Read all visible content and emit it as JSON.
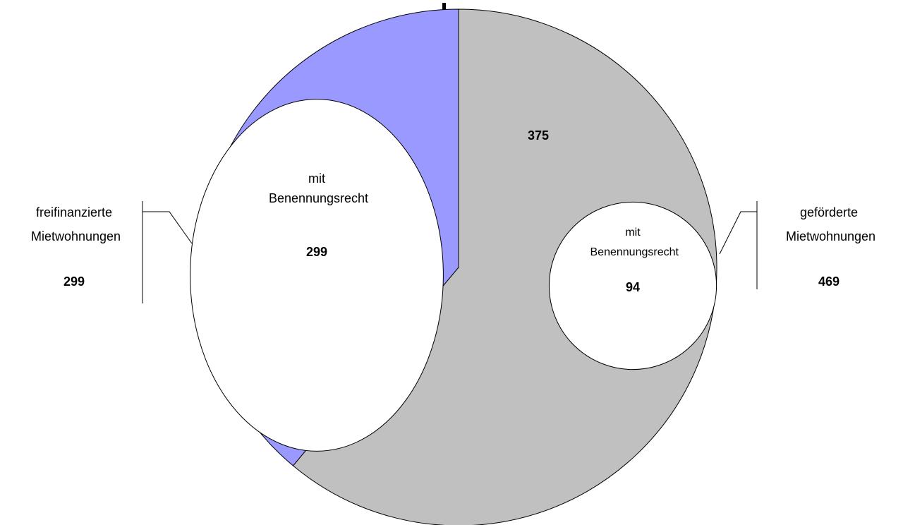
{
  "chart_data": {
    "type": "pie",
    "categories": [
      "freifinanzierte Mietwohnungen",
      "geförderte Mietwohnungen"
    ],
    "values": [
      299,
      469
    ],
    "colors": [
      "#9999ff",
      "#c0c0c0"
    ],
    "subsets": {
      "name": "mit Benennungsrecht",
      "values": [
        299,
        94
      ]
    },
    "remaining_values": [
      null,
      375
    ]
  }
}
